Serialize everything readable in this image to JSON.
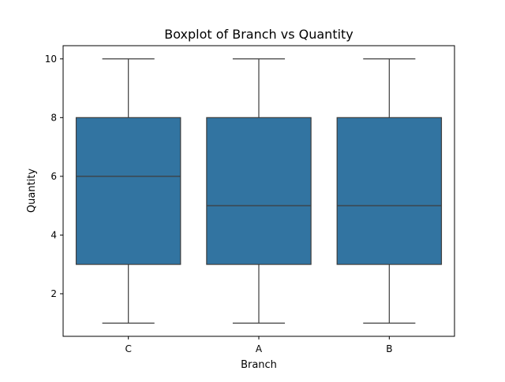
{
  "chart_data": {
    "type": "box",
    "title": "Boxplot of Branch vs Quantity",
    "xlabel": "Branch",
    "ylabel": "Quantity",
    "ylim": [
      0.55,
      10.45
    ],
    "yticks": [
      2,
      4,
      6,
      8,
      10
    ],
    "categories": [
      "C",
      "A",
      "B"
    ],
    "boxes": [
      {
        "category": "C",
        "min": 1,
        "q1": 3,
        "median": 6,
        "q3": 8,
        "max": 10
      },
      {
        "category": "A",
        "min": 1,
        "q1": 3,
        "median": 5,
        "q3": 8,
        "max": 10
      },
      {
        "category": "B",
        "min": 1,
        "q1": 3,
        "median": 5,
        "q3": 8,
        "max": 10
      }
    ],
    "grid": false,
    "colors": {
      "box_fill": "#3274a1",
      "line": "#3d3d3d",
      "axis": "#000000"
    }
  }
}
